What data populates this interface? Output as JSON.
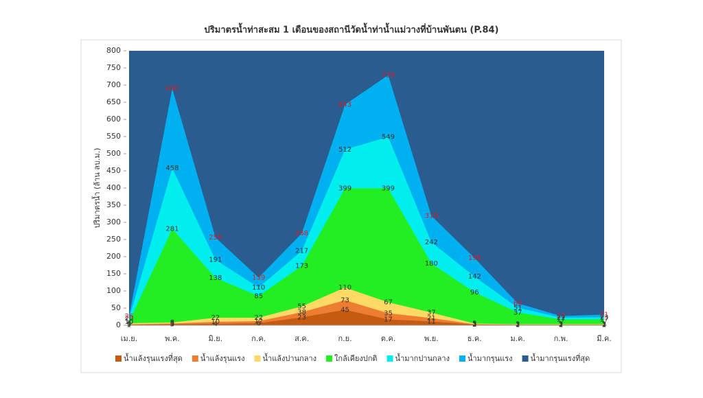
{
  "chart_data": {
    "type": "area",
    "title": "ปริมาตรน้ำท่าสะสม 1 เดือนของสถานีวัดน้ำท่าน้ำแม่วางที่บ้านพันตน (P.84)",
    "y_label": "ปริมาตรน้ำ (ล้าน ลบ.ม.)",
    "categories": [
      "เม.ย.",
      "พ.ค.",
      "มิ.ย.",
      "ก.ค.",
      "ส.ค.",
      "ก.ย.",
      "ต.ค.",
      "พ.ย.",
      "ธ.ค.",
      "ม.ค.",
      "ก.พ.",
      "มี.ค."
    ],
    "ylim": [
      0,
      800
    ],
    "yticks": [
      0,
      50,
      100,
      150,
      200,
      250,
      300,
      350,
      400,
      450,
      500,
      550,
      600,
      650,
      700,
      750,
      800
    ],
    "series": [
      {
        "name": "น้ำแล้งรุนแรงที่สุด",
        "color": "#c55a11",
        "values": [
          1,
          3,
          4,
          6,
          23,
          45,
          17,
          11,
          2,
          1,
          1,
          1
        ]
      },
      {
        "name": "น้ำแล้งรุนแรง",
        "color": "#ed7d31",
        "values": [
          3,
          5,
          10,
          12,
          38,
          73,
          35,
          21,
          3,
          2,
          2,
          2
        ]
      },
      {
        "name": "น้ำแล้งปานกลาง",
        "color": "#ffd966",
        "values": [
          6,
          8,
          22,
          22,
          55,
          110,
          67,
          37,
          5,
          3,
          3,
          3
        ]
      },
      {
        "name": "ใกล้เคียงปกติ",
        "color": "#22ee22",
        "values": [
          10,
          281,
          138,
          85,
          173,
          399,
          399,
          180,
          96,
          37,
          17,
          17
        ]
      },
      {
        "name": "น้ำมากปานกลาง",
        "color": "#00eeee",
        "values": [
          20,
          458,
          191,
          110,
          217,
          512,
          549,
          242,
          142,
          51,
          22,
          23
        ]
      },
      {
        "name": "น้ำมากรุนแรง",
        "color": "#00b0f0",
        "label_color": "#d0202a",
        "values": [
          26,
          690,
          256,
          139,
          268,
          643,
          729,
          319,
          196,
          64,
          27,
          31
        ]
      },
      {
        "name": "น้ำมากรุนแรงที่สุด",
        "color": "#2b5c8f",
        "values": [
          800,
          800,
          800,
          800,
          800,
          800,
          800,
          800,
          800,
          800,
          800,
          800
        ]
      }
    ]
  }
}
